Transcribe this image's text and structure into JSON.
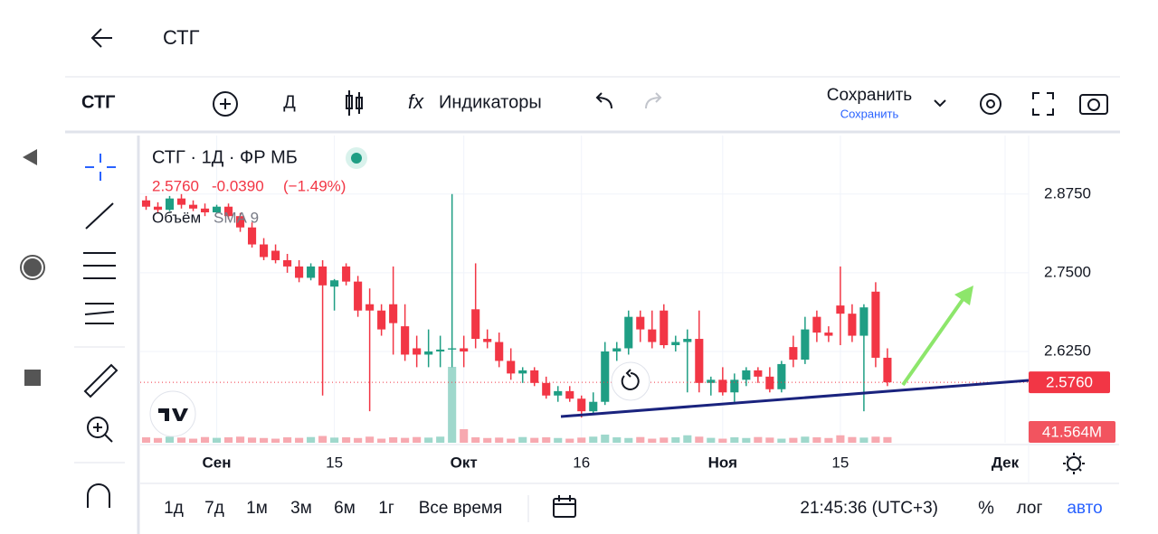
{
  "header": {
    "title": "СТГ"
  },
  "toolbar": {
    "symbol": "СТГ",
    "interval": "Д",
    "indicators": "Индикаторы",
    "save": "Сохранить",
    "save_sub": "Сохранить"
  },
  "chart_data": {
    "type": "candlestick",
    "legend_title": "СТГ · 1Д · ФР МБ",
    "legend_price": "2.5760",
    "change": "-0.0390",
    "change_pct": "(−1.49%)",
    "volume_title": "Объём",
    "volume_sma": "SMA 9",
    "up_color": "#1f9e84",
    "down_color": "#f23645",
    "volume_up_color": "#9fd8cc",
    "volume_down_color": "#f7a9b0",
    "ylim": [
      2.48,
      2.968
    ],
    "yticks": [
      {
        "value": 2.875,
        "label": "2.8750"
      },
      {
        "value": 2.75,
        "label": "2.7500"
      },
      {
        "value": 2.625,
        "label": "2.6250"
      }
    ],
    "xlim": [
      -0.5,
      75
    ],
    "xticks": [
      {
        "value": 6,
        "label": "Сен"
      },
      {
        "value": 16,
        "label": "15"
      },
      {
        "value": 27,
        "label": "Окт"
      },
      {
        "value": 37,
        "label": "16"
      },
      {
        "value": 49,
        "label": "Ноя"
      },
      {
        "value": 59,
        "label": "15"
      },
      {
        "value": 73,
        "label": "Дек"
      }
    ],
    "last_price": {
      "value": 2.576,
      "label": "2.5760"
    },
    "volume_max": 1000,
    "volume_badge": "41.564M",
    "ohlc": [
      [
        2.865,
        2.872,
        2.85,
        2.855
      ],
      [
        2.855,
        2.862,
        2.845,
        2.85
      ],
      [
        2.85,
        2.872,
        2.848,
        2.868
      ],
      [
        2.868,
        2.875,
        2.852,
        2.858
      ],
      [
        2.858,
        2.865,
        2.848,
        2.852
      ],
      [
        2.852,
        2.86,
        2.84,
        2.846
      ],
      [
        2.846,
        2.858,
        2.844,
        2.855
      ],
      [
        2.855,
        2.86,
        2.835,
        2.84
      ],
      [
        2.84,
        2.845,
        2.815,
        2.822
      ],
      [
        2.822,
        2.83,
        2.79,
        2.795
      ],
      [
        2.795,
        2.805,
        2.77,
        2.775
      ],
      [
        2.785,
        2.795,
        2.765,
        2.77
      ],
      [
        2.77,
        2.78,
        2.75,
        2.76
      ],
      [
        2.76,
        2.77,
        2.735,
        2.742
      ],
      [
        2.742,
        2.765,
        2.738,
        2.76
      ],
      [
        2.76,
        2.77,
        2.555,
        2.73
      ],
      [
        2.728,
        2.74,
        2.69,
        2.738
      ],
      [
        2.76,
        2.765,
        2.73,
        2.736
      ],
      [
        2.736,
        2.745,
        2.68,
        2.69
      ],
      [
        2.7,
        2.725,
        2.53,
        2.69
      ],
      [
        2.69,
        2.7,
        2.65,
        2.66
      ],
      [
        2.7,
        2.76,
        2.62,
        2.67
      ],
      [
        2.665,
        2.7,
        2.61,
        2.62
      ],
      [
        2.63,
        2.65,
        2.6,
        2.62
      ],
      [
        2.62,
        2.66,
        2.6,
        2.625
      ],
      [
        2.625,
        2.65,
        2.6,
        2.628
      ],
      [
        2.628,
        2.875,
        2.6,
        2.63
      ],
      [
        2.63,
        2.65,
        2.6,
        2.625
      ],
      [
        2.692,
        2.765,
        2.63,
        2.645
      ],
      [
        2.645,
        2.66,
        2.63,
        2.64
      ],
      [
        2.64,
        2.655,
        2.6,
        2.61
      ],
      [
        2.61,
        2.63,
        2.58,
        2.59
      ],
      [
        2.59,
        2.6,
        2.575,
        2.595
      ],
      [
        2.595,
        2.6,
        2.57,
        2.575
      ],
      [
        2.575,
        2.585,
        2.55,
        2.555
      ],
      [
        2.555,
        2.57,
        2.545,
        2.562
      ],
      [
        2.562,
        2.57,
        2.545,
        2.55
      ],
      [
        2.55,
        2.555,
        2.52,
        2.53
      ],
      [
        2.53,
        2.56,
        2.525,
        2.545
      ],
      [
        2.545,
        2.64,
        2.54,
        2.625
      ],
      [
        2.625,
        2.64,
        2.61,
        2.63
      ],
      [
        2.63,
        2.69,
        2.62,
        2.68
      ],
      [
        2.68,
        2.69,
        2.64,
        2.66
      ],
      [
        2.66,
        2.69,
        2.63,
        2.64
      ],
      [
        2.69,
        2.7,
        2.63,
        2.635
      ],
      [
        2.635,
        2.65,
        2.625,
        2.64
      ],
      [
        2.64,
        2.66,
        2.56,
        2.645
      ],
      [
        2.645,
        2.69,
        2.56,
        2.575
      ],
      [
        2.575,
        2.585,
        2.555,
        2.58
      ],
      [
        2.58,
        2.6,
        2.555,
        2.56
      ],
      [
        2.56,
        2.59,
        2.545,
        2.58
      ],
      [
        2.58,
        2.6,
        2.57,
        2.595
      ],
      [
        2.595,
        2.6,
        2.575,
        2.585
      ],
      [
        2.585,
        2.6,
        2.56,
        2.565
      ],
      [
        2.565,
        2.61,
        2.56,
        2.605
      ],
      [
        2.632,
        2.65,
        2.6,
        2.612
      ],
      [
        2.612,
        2.68,
        2.605,
        2.66
      ],
      [
        2.68,
        2.69,
        2.64,
        2.655
      ],
      [
        2.655,
        2.665,
        2.64,
        2.65
      ],
      [
        2.698,
        2.76,
        2.635,
        2.685
      ],
      [
        2.685,
        2.7,
        2.64,
        2.65
      ],
      [
        2.65,
        2.7,
        2.53,
        2.695
      ],
      [
        2.72,
        2.735,
        2.6,
        2.615
      ],
      [
        2.615,
        2.63,
        2.57,
        2.576
      ]
    ],
    "volumes": [
      40,
      35,
      45,
      38,
      30,
      42,
      36,
      40,
      45,
      38,
      35,
      30,
      40,
      36,
      42,
      50,
      38,
      40,
      35,
      45,
      30,
      40,
      36,
      42,
      38,
      45,
      560,
      100,
      40,
      35,
      38,
      30,
      42,
      36,
      40,
      35,
      30,
      38,
      45,
      60,
      40,
      35,
      42,
      30,
      38,
      40,
      55,
      45,
      36,
      30,
      40,
      35,
      42,
      38,
      30,
      36,
      45,
      40,
      35,
      55,
      42,
      38,
      45,
      41.564
    ]
  },
  "ranges": [
    "1д",
    "7д",
    "1м",
    "3м",
    "6м",
    "1г",
    "Все время"
  ],
  "status": {
    "time": "21:45:36 (UTC+3)",
    "percent": "%",
    "log": "лог",
    "auto": "авто"
  }
}
